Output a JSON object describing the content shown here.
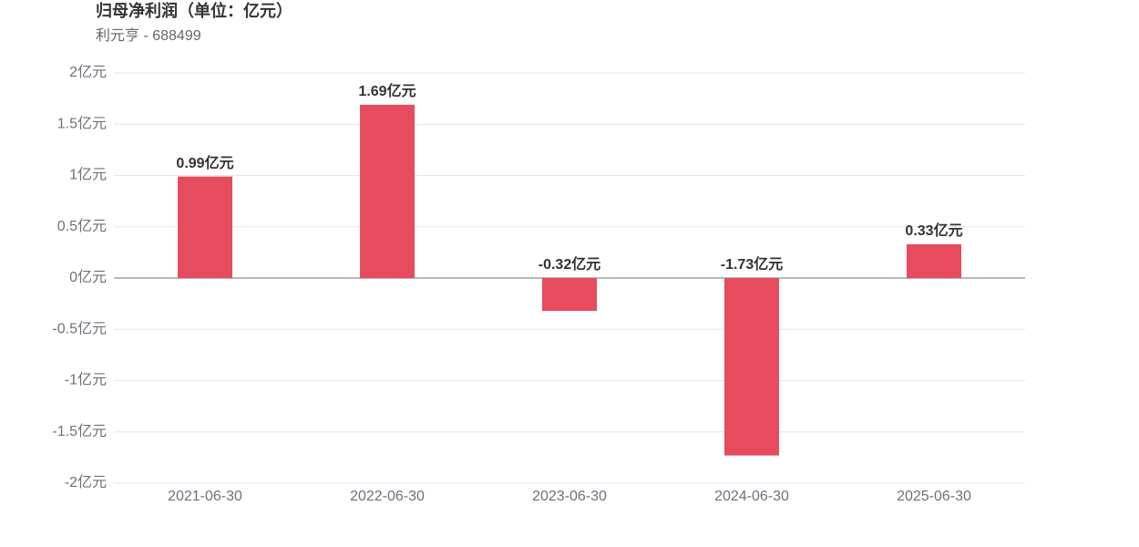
{
  "chart_data": {
    "type": "bar",
    "title": "归母净利润（单位：亿元）",
    "subtitle": "利元亨 - 688499",
    "categories": [
      "2021-06-30",
      "2022-06-30",
      "2023-06-30",
      "2024-06-30",
      "2025-06-30"
    ],
    "values": [
      0.99,
      1.69,
      -0.32,
      -1.73,
      0.33
    ],
    "value_labels": [
      "0.99亿元",
      "1.69亿元",
      "-0.32亿元",
      "-1.73亿元",
      "0.33亿元"
    ],
    "color": "#e64c5e",
    "ylim": [
      -2,
      2
    ],
    "yticks": [
      {
        "value": -2,
        "label": "-2亿元"
      },
      {
        "value": -1.5,
        "label": "-1.5亿元"
      },
      {
        "value": -1,
        "label": "-1亿元"
      },
      {
        "value": -0.5,
        "label": "-0.5亿元"
      },
      {
        "value": 0,
        "label": "0亿元"
      },
      {
        "value": 0.5,
        "label": "0.5亿元"
      },
      {
        "value": 1,
        "label": "1亿元"
      },
      {
        "value": 1.5,
        "label": "1.5亿元"
      },
      {
        "value": 2,
        "label": "2亿元"
      }
    ],
    "grid": true
  }
}
